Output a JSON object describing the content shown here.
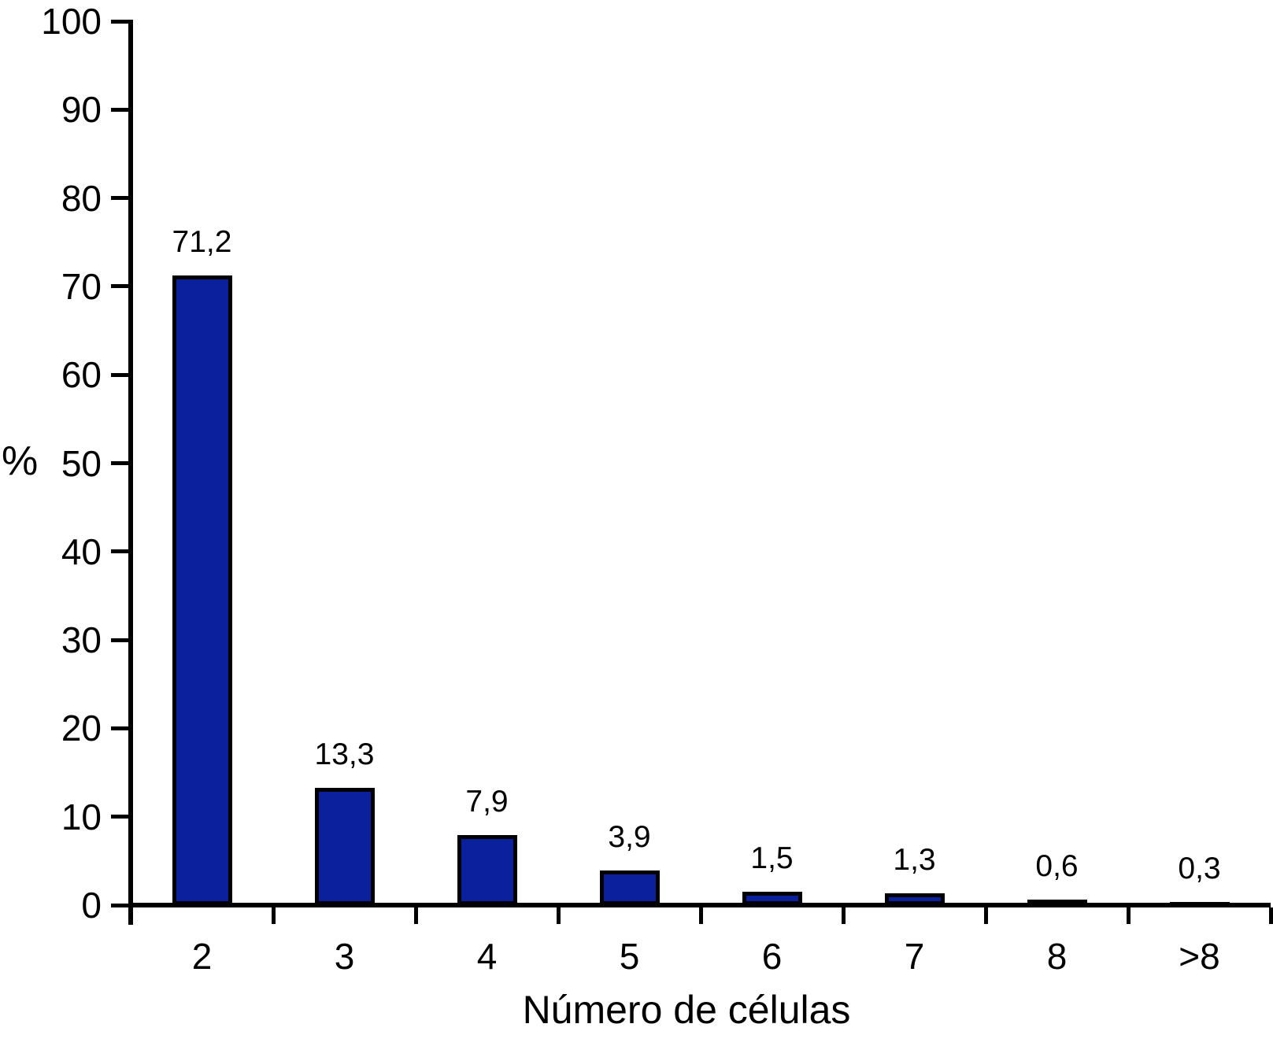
{
  "chart_data": {
    "type": "bar",
    "categories": [
      "2",
      "3",
      "4",
      "5",
      "6",
      "7",
      "8",
      ">8"
    ],
    "values": [
      71.2,
      13.3,
      7.9,
      3.9,
      1.5,
      1.3,
      0.6,
      0.3
    ],
    "value_labels": [
      "71,2",
      "13,3",
      "7,9",
      "3,9",
      "1,5",
      "1,3",
      "0,6",
      "0,3"
    ],
    "title": "",
    "xlabel": "Número de células",
    "ylabel": "%",
    "ylim": [
      0,
      100
    ],
    "y_ticks": [
      0,
      10,
      20,
      30,
      40,
      50,
      60,
      70,
      80,
      90,
      100
    ],
    "y_tick_labels": [
      "0",
      "10",
      "20",
      "30",
      "40",
      "50",
      "60",
      "70",
      "80",
      "90",
      "100"
    ],
    "grid": false,
    "legend": "none",
    "bar_color": "#0B209D",
    "bar_border_color": "#000000",
    "axis_color": "#000000",
    "text_color": "#000000"
  }
}
